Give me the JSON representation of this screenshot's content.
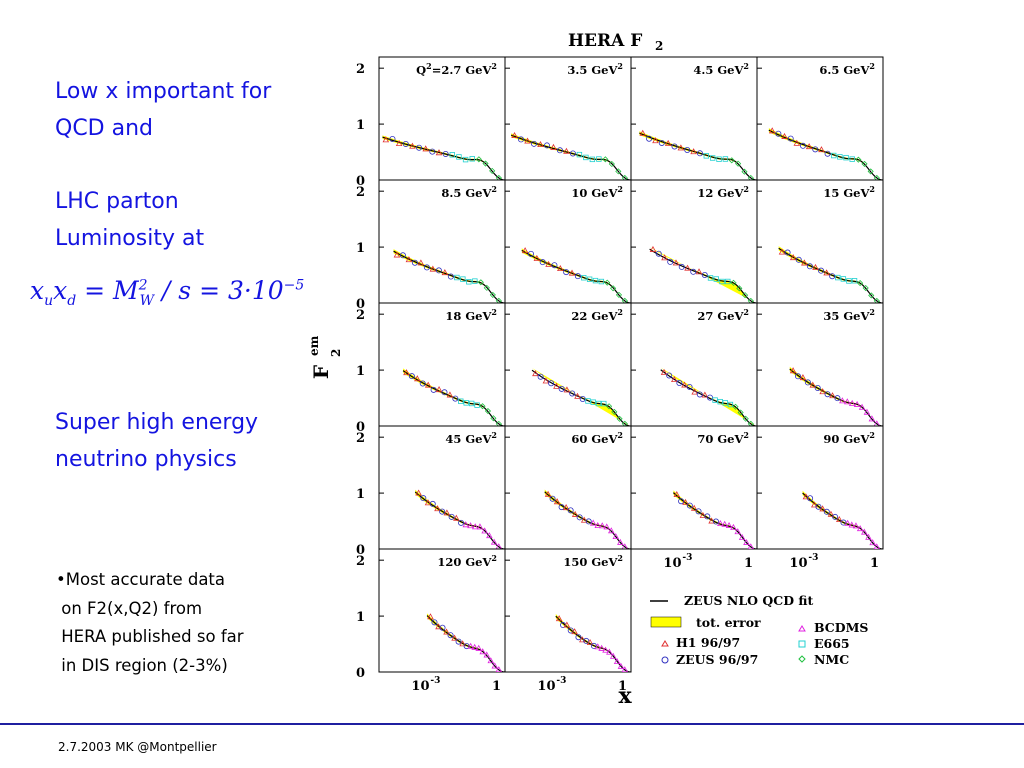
{
  "slide": {
    "left_text_1": [
      "Low x important for",
      "QCD and"
    ],
    "left_text_2": [
      "LHC parton",
      "Luminosity at"
    ],
    "formula": {
      "lhs": "x",
      "sub_u": "u",
      "x2": "x",
      "sub_d": "d",
      "eq": " = M",
      "sup_2": "2",
      "sub_w": "W",
      "rest": " / s = 3·10",
      "sup_exp": "−5"
    },
    "left_text_3": [
      "Super high energy",
      "neutrino physics"
    ],
    "bullets": [
      "•Most accurate data",
      " on F2(x,Q2) from",
      " HERA published so far",
      " in DIS region (2-3%)"
    ],
    "footer": "2.7.2003 MK @Montpellier"
  },
  "colors": {
    "text_blue": "#1414e0",
    "error_band": "#ffff00",
    "h1": "#e03030",
    "zeus": "#3030c0",
    "bcdms": "#e020e0",
    "e665": "#20d0d0",
    "nmc": "#20c040"
  },
  "chart_data": {
    "type": "scatter",
    "title": "HERA F",
    "title_sub": "2",
    "ylabel": "F",
    "ylabel_sup": "em",
    "ylabel_sub": "2",
    "xlabel": "x",
    "xscale": "log",
    "xlim": [
      3e-05,
      1
    ],
    "ylim": [
      0,
      2.2
    ],
    "yticks": [
      0,
      1,
      2
    ],
    "xtick_labels": [
      "10",
      "-3",
      "1"
    ],
    "panels": [
      {
        "label": "Q",
        "label_sup": "2",
        "label_rest": "=2.7 GeV",
        "label_unit_sup": "2",
        "q2": 2.7,
        "xmin": 4e-05
      },
      {
        "label": "3.5 GeV",
        "label_sup": "2",
        "q2": 3.5,
        "xmin": 5e-05
      },
      {
        "label": "4.5 GeV",
        "label_sup": "2",
        "q2": 4.5,
        "xmin": 6e-05
      },
      {
        "label": "6.5 GeV",
        "label_sup": "2",
        "q2": 6.5,
        "xmin": 8e-05
      },
      {
        "label": "8.5 GeV",
        "label_sup": "2",
        "q2": 8.5,
        "xmin": 0.0001
      },
      {
        "label": "10 GeV",
        "label_sup": "2",
        "q2": 10,
        "xmin": 0.00012
      },
      {
        "label": "12 GeV",
        "label_sup": "2",
        "q2": 12,
        "xmin": 0.00014
      },
      {
        "label": "15 GeV",
        "label_sup": "2",
        "q2": 15,
        "xmin": 0.00018
      },
      {
        "label": "18 GeV",
        "label_sup": "2",
        "q2": 18,
        "xmin": 0.00022
      },
      {
        "label": "22 GeV",
        "label_sup": "2",
        "q2": 22,
        "xmin": 0.00028
      },
      {
        "label": "27 GeV",
        "label_sup": "2",
        "q2": 27,
        "xmin": 0.00035
      },
      {
        "label": "35 GeV",
        "label_sup": "2",
        "q2": 35,
        "xmin": 0.00045
      },
      {
        "label": "45 GeV",
        "label_sup": "2",
        "q2": 45,
        "xmin": 0.0006
      },
      {
        "label": "60 GeV",
        "label_sup": "2",
        "q2": 60,
        "xmin": 0.0008
      },
      {
        "label": "70 GeV",
        "label_sup": "2",
        "q2": 70,
        "xmin": 0.001
      },
      {
        "label": "90 GeV",
        "label_sup": "2",
        "q2": 90,
        "xmin": 0.0013
      },
      {
        "label": "120 GeV",
        "label_sup": "2",
        "q2": 120,
        "xmin": 0.0016
      },
      {
        "label": "150 GeV",
        "label_sup": "2",
        "q2": 150,
        "xmin": 0.002
      }
    ],
    "legend": {
      "fit": "ZEUS NLO QCD fit",
      "error": "tot. error",
      "h1": "H1 96/97",
      "zeus": "ZEUS 96/97",
      "bcdms": "BCDMS",
      "e665": "E665",
      "nmc": "NMC"
    },
    "legend_placement": "bottom-right"
  }
}
